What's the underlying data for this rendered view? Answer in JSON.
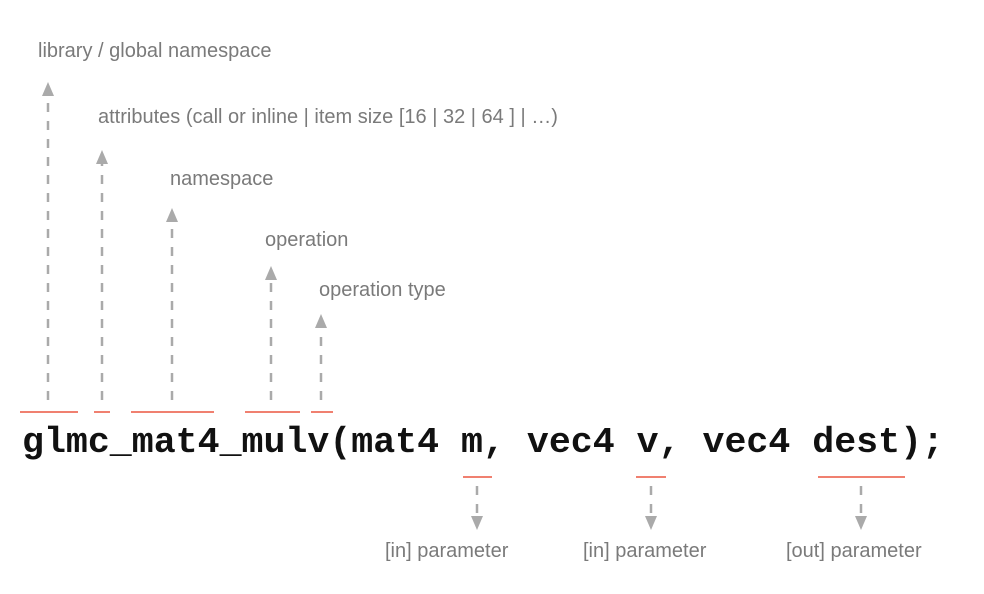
{
  "code": "glmc_mat4_mulv(mat4 m, vec4 v, vec4 dest);",
  "labels": {
    "library": "library / global namespace",
    "attributes": "attributes (call or inline | item size [16 | 32 | 64 ] | …)",
    "namespace": "namespace",
    "operation": "operation",
    "operation_type": "operation type",
    "param_m": "[in] parameter",
    "param_v": "[in] parameter",
    "param_dest": "[out] parameter"
  },
  "colors": {
    "underline": "#f08070",
    "arrow": "#aaaaaa",
    "label": "#7a7a7a"
  }
}
